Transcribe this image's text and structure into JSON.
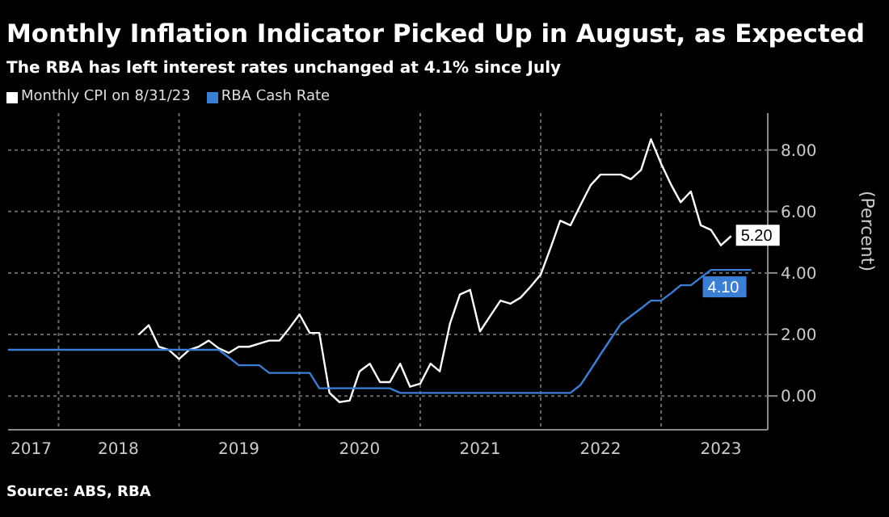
{
  "chart_data": {
    "type": "line",
    "title": "Monthly Inflation Indicator Picked Up in August, as Expected",
    "subtitle": "The RBA has left interest rates unchanged at 4.1% since July",
    "ylabel": "(Percent)",
    "annotations": [
      "Source: ABS, RBA"
    ],
    "xlim": [
      "2017-08-01",
      "2023-11-20"
    ],
    "xticks": [
      {
        "value": "2017-10-10",
        "label": "2017"
      },
      {
        "value": "2018-01-01",
        "label": null
      },
      {
        "value": "2018-07-01",
        "label": "2018"
      },
      {
        "value": "2019-01-01",
        "label": null
      },
      {
        "value": "2019-07-01",
        "label": "2019"
      },
      {
        "value": "2020-01-01",
        "label": null
      },
      {
        "value": "2020-07-01",
        "label": "2020"
      },
      {
        "value": "2021-01-01",
        "label": null
      },
      {
        "value": "2021-07-01",
        "label": "2021"
      },
      {
        "value": "2022-01-01",
        "label": null
      },
      {
        "value": "2022-07-01",
        "label": "2022"
      },
      {
        "value": "2023-01-01",
        "label": null
      },
      {
        "value": "2023-07-01",
        "label": "2023"
      }
    ],
    "ylim": [
      -1.1,
      9.2
    ],
    "yticks": [
      {
        "value": 0,
        "label": "0.00"
      },
      {
        "value": 2,
        "label": "2.00"
      },
      {
        "value": 4,
        "label": "4.00"
      },
      {
        "value": 6,
        "label": "6.00"
      },
      {
        "value": 8,
        "label": "8.00"
      }
    ],
    "grid": true,
    "legend": "top left",
    "marker": "none",
    "line_style": "solid",
    "series": [
      {
        "name": "Monthly CPI on 8/31/23",
        "color": "#ffffff",
        "x": [
          "2018-09",
          "2018-10",
          "2018-11",
          "2018-12",
          "2019-01",
          "2019-02",
          "2019-03",
          "2019-04",
          "2019-05",
          "2019-06",
          "2019-07",
          "2019-08",
          "2019-09",
          "2019-10",
          "2019-11",
          "2019-12",
          "2020-01",
          "2020-02",
          "2020-03",
          "2020-04",
          "2020-05",
          "2020-06",
          "2020-07",
          "2020-08",
          "2020-09",
          "2020-10",
          "2020-11",
          "2020-12",
          "2021-01",
          "2021-02",
          "2021-03",
          "2021-04",
          "2021-05",
          "2021-06",
          "2021-07",
          "2021-08",
          "2021-09",
          "2021-10",
          "2021-11",
          "2021-12",
          "2022-01",
          "2022-02",
          "2022-03",
          "2022-04",
          "2022-05",
          "2022-06",
          "2022-07",
          "2022-08",
          "2022-09",
          "2022-10",
          "2022-11",
          "2022-12",
          "2023-01",
          "2023-02",
          "2023-03",
          "2023-04",
          "2023-05",
          "2023-06",
          "2023-07",
          "2023-08"
        ],
        "values": [
          2.0,
          2.3,
          1.6,
          1.5,
          1.2,
          1.5,
          1.6,
          1.8,
          1.55,
          1.4,
          1.6,
          1.6,
          1.7,
          1.8,
          1.8,
          2.2,
          2.65,
          2.05,
          2.05,
          0.1,
          -0.2,
          -0.15,
          0.8,
          1.05,
          0.45,
          0.45,
          1.05,
          0.3,
          0.4,
          1.05,
          0.8,
          2.35,
          3.3,
          3.45,
          2.1,
          2.6,
          3.1,
          3.0,
          3.2,
          3.55,
          3.95,
          4.85,
          5.7,
          5.55,
          6.2,
          6.85,
          7.2,
          7.2,
          7.2,
          7.05,
          7.35,
          8.35,
          7.55,
          6.85,
          6.3,
          6.65,
          5.55,
          5.4,
          4.9,
          5.2
        ],
        "value_labels": [
          null,
          null,
          null,
          null,
          null,
          null,
          null,
          null,
          null,
          null,
          null,
          null,
          null,
          null,
          null,
          null,
          null,
          null,
          null,
          null,
          null,
          null,
          null,
          null,
          null,
          null,
          null,
          null,
          null,
          null,
          null,
          null,
          null,
          null,
          null,
          null,
          null,
          null,
          null,
          null,
          null,
          null,
          null,
          null,
          null,
          null,
          null,
          null,
          null,
          null,
          null,
          null,
          null,
          null,
          null,
          null,
          null,
          null,
          null,
          "5.20"
        ]
      },
      {
        "name": "RBA Cash Rate",
        "color": "#3a7fd5",
        "x": [
          "2017-08",
          "2019-05",
          "2019-06",
          "2019-07",
          "2019-09",
          "2019-10",
          "2020-02",
          "2020-03",
          "2020-10",
          "2020-11",
          "2022-04",
          "2022-05",
          "2022-06",
          "2022-07",
          "2022-08",
          "2022-09",
          "2022-10",
          "2022-11",
          "2022-12",
          "2023-01",
          "2023-02",
          "2023-03",
          "2023-04",
          "2023-05",
          "2023-06",
          "2023-07",
          "2023-08",
          "2023-09",
          "2023-10"
        ],
        "values": [
          1.5,
          1.5,
          1.25,
          1.0,
          1.0,
          0.75,
          0.75,
          0.25,
          0.25,
          0.1,
          0.1,
          0.35,
          0.85,
          1.35,
          1.85,
          2.35,
          2.6,
          2.85,
          3.1,
          3.1,
          3.35,
          3.6,
          3.6,
          3.85,
          4.1,
          4.1,
          4.1,
          4.1,
          4.1
        ],
        "value_labels": [
          null,
          null,
          null,
          null,
          null,
          null,
          null,
          null,
          null,
          null,
          null,
          null,
          null,
          null,
          null,
          null,
          null,
          null,
          null,
          null,
          null,
          null,
          null,
          null,
          null,
          null,
          null,
          null,
          "4.10"
        ]
      }
    ]
  }
}
